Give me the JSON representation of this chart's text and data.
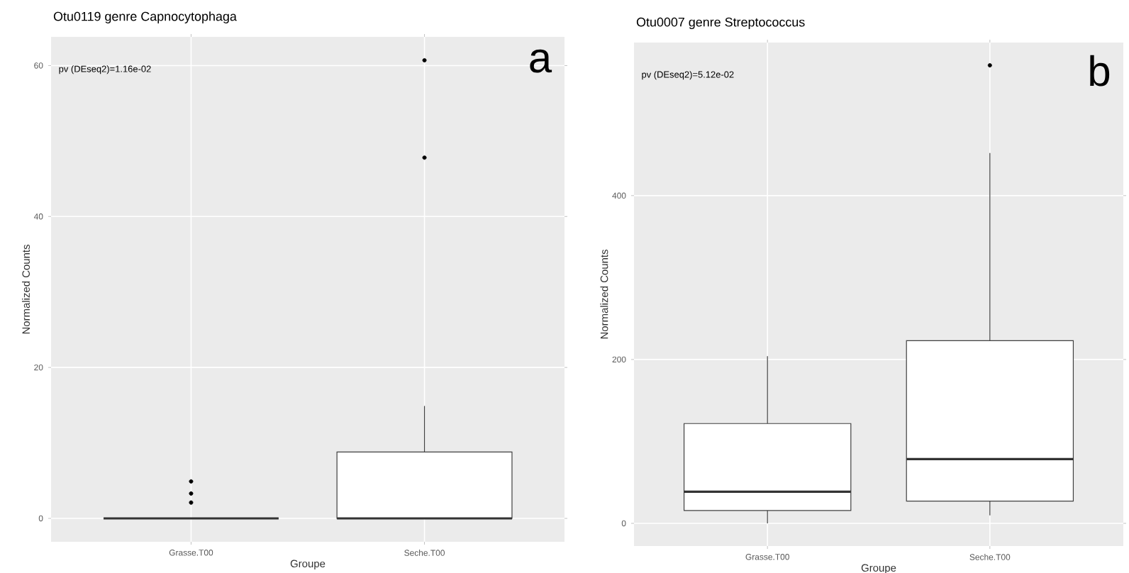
{
  "chart_data": [
    {
      "type": "box",
      "title": "Otu0119 genre Capnocytophaga",
      "xlabel": "Groupe",
      "ylabel": "Normalized Counts",
      "categories": [
        "Grasse.T00",
        "Seche.T00"
      ],
      "boxes": [
        {
          "low": 0,
          "q1": 0,
          "median": 0,
          "q3": 0,
          "high": 0,
          "outliers": [
            4.9,
            3.3,
            2.1
          ]
        },
        {
          "low": 0,
          "q1": 0,
          "median": 0,
          "q3": 8.8,
          "high": 14.9,
          "outliers": [
            60.7,
            47.8
          ]
        }
      ],
      "ylim": [
        -3.1,
        63.8
      ],
      "yticks": [
        0,
        20,
        40,
        60
      ],
      "grid": true,
      "annotations": [
        "pv (DEseq2)=1.16e-02",
        "a"
      ]
    },
    {
      "type": "box",
      "title": "Otu0007 genre Streptococcus",
      "xlabel": "Groupe",
      "ylabel": "Normalized Counts",
      "categories": [
        "Grasse.T00",
        "Seche.T00"
      ],
      "boxes": [
        {
          "low": 0,
          "q1": 15.6,
          "median": 38.7,
          "q3": 121.8,
          "high": 204
        },
        {
          "low": 9.8,
          "q1": 27.1,
          "median": 78.5,
          "q3": 223,
          "high": 452,
          "outliers": [
            559
          ]
        }
      ],
      "ylim": [
        -27.7,
        586.8
      ],
      "yticks": [
        0,
        200,
        400
      ],
      "grid": true,
      "annotations": [
        "pv (DEseq2)=5.12e-02",
        "b"
      ]
    }
  ]
}
